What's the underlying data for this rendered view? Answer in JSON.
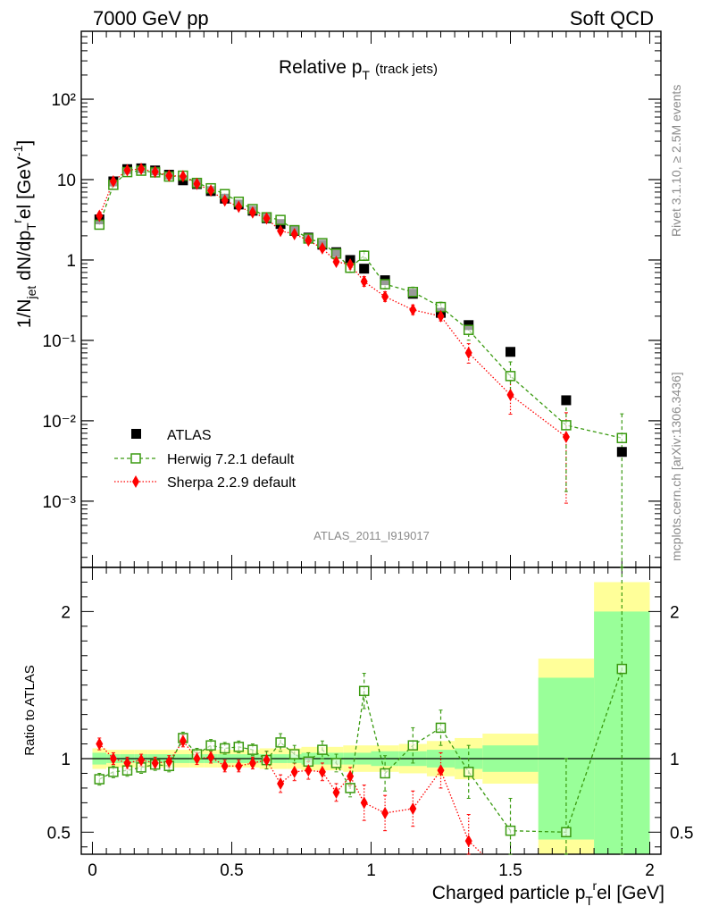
{
  "header": {
    "left": "7000 GeV pp",
    "right": "Soft QCD"
  },
  "side": {
    "rivet": "Rivet 3.1.10, ≥ 2.5M events",
    "mcplots": "mcplots.cern.ch [arXiv:1306.3436]"
  },
  "watermark": "ATLAS_2011_I919017",
  "colors": {
    "herwig": "#3a9a10",
    "sherpa": "#ff0000",
    "atlas": "#000000",
    "band_inner": "#99ff99",
    "band_outer": "#ffff99"
  },
  "chart_data": [
    {
      "type": "scatter",
      "panel": "main",
      "title_main": "Relative p",
      "title_sub": "T",
      "title_note": "(track jets)",
      "ylabel": "1/N_jet dN/dp_T^rel [GeV^-1]",
      "ylabel_parts": {
        "a": "1/N",
        "a_sub": "jet",
        "b": " dN/dp",
        "b_sub": "T",
        "b_sup": "r",
        "c": "el [GeV",
        "c_sup": "-1",
        "d": "]"
      },
      "yscale": "log",
      "ylim": [
        0.00015,
        700
      ],
      "xlim": [
        -0.04,
        2.04
      ],
      "ytick_labels": [
        "10⁻³",
        "10⁻²",
        "10⁻¹",
        "1",
        "10",
        "10²"
      ],
      "ytick_values": [
        0.001,
        0.01,
        0.1,
        1,
        10,
        100
      ],
      "legend": [
        "ATLAS",
        "Herwig 7.2.1 default",
        "Sherpa 2.2.9 default"
      ],
      "legend_position": "lower-left",
      "series": [
        {
          "name": "ATLAS",
          "x": [
            0.025,
            0.075,
            0.125,
            0.175,
            0.225,
            0.275,
            0.325,
            0.375,
            0.425,
            0.475,
            0.525,
            0.575,
            0.625,
            0.675,
            0.725,
            0.775,
            0.825,
            0.875,
            0.925,
            0.975,
            1.05,
            1.15,
            1.25,
            1.35,
            1.5,
            1.7,
            1.9
          ],
          "y": [
            3.2,
            9.5,
            13.5,
            13.8,
            13.0,
            11.5,
            9.8,
            8.8,
            7.2,
            5.8,
            4.9,
            4.1,
            3.3,
            2.8,
            2.3,
            1.9,
            1.55,
            1.25,
            1.0,
            0.78,
            0.56,
            0.38,
            0.22,
            0.155,
            0.072,
            0.018,
            0.0041
          ]
        },
        {
          "name": "Herwig 7.2.1 default",
          "x": [
            0.025,
            0.075,
            0.125,
            0.175,
            0.225,
            0.275,
            0.325,
            0.375,
            0.425,
            0.475,
            0.525,
            0.575,
            0.625,
            0.675,
            0.725,
            0.775,
            0.825,
            0.875,
            0.925,
            0.975,
            1.05,
            1.15,
            1.25,
            1.35,
            1.5,
            1.7,
            1.9
          ],
          "y": [
            2.75,
            8.6,
            12.4,
            12.9,
            12.3,
            10.9,
            11.2,
            9.1,
            7.8,
            6.6,
            5.3,
            4.3,
            3.4,
            3.15,
            2.35,
            1.85,
            1.62,
            1.2,
            0.8,
            1.13,
            0.5,
            0.4,
            0.26,
            0.135,
            0.036,
            0.0088,
            0.0061
          ]
        },
        {
          "name": "Sherpa 2.2.9 default",
          "x": [
            0.025,
            0.075,
            0.125,
            0.175,
            0.225,
            0.275,
            0.325,
            0.375,
            0.425,
            0.475,
            0.525,
            0.575,
            0.625,
            0.675,
            0.725,
            0.775,
            0.825,
            0.875,
            0.925,
            0.975,
            1.05,
            1.15,
            1.25,
            1.35,
            1.5,
            1.7,
            1.9
          ],
          "y": [
            3.55,
            9.5,
            13.1,
            13.6,
            12.5,
            11.2,
            11.0,
            8.85,
            7.3,
            5.5,
            4.6,
            3.9,
            3.3,
            2.3,
            2.1,
            1.75,
            1.4,
            0.95,
            0.88,
            0.54,
            0.35,
            0.24,
            0.2,
            0.07,
            0.021,
            0.0063,
            null
          ]
        }
      ]
    },
    {
      "type": "scatter",
      "panel": "ratio",
      "ylabel": "Ratio to ATLAS",
      "xlabel": "Charged particle p_T^rel [GeV]",
      "xlabel_parts": {
        "a": "Charged particle p",
        "sub": "T",
        "sup": "r",
        "b": "el [GeV]"
      },
      "ylim": [
        0.35,
        2.3
      ],
      "xlim": [
        -0.04,
        2.04
      ],
      "xtick_labels": [
        "0",
        "0.5",
        "1",
        "1.5",
        "2"
      ],
      "xtick_values": [
        0,
        0.5,
        1,
        1.5,
        2
      ],
      "ytick_labels": [
        "0.5",
        "1",
        "2"
      ],
      "ytick_values": [
        0.5,
        1,
        2
      ],
      "bands": {
        "edges": [
          0,
          0.05,
          0.1,
          0.15,
          0.2,
          0.25,
          0.3,
          0.35,
          0.4,
          0.45,
          0.5,
          0.55,
          0.6,
          0.65,
          0.7,
          0.75,
          0.8,
          0.85,
          0.9,
          0.95,
          1.0,
          1.1,
          1.2,
          1.3,
          1.4,
          1.6,
          1.8,
          2.0
        ],
        "inner": [
          0.04,
          0.03,
          0.03,
          0.03,
          0.03,
          0.03,
          0.03,
          0.03,
          0.03,
          0.03,
          0.03,
          0.03,
          0.03,
          0.03,
          0.03,
          0.04,
          0.04,
          0.04,
          0.04,
          0.04,
          0.05,
          0.05,
          0.06,
          0.07,
          0.09,
          0.55,
          1.0
        ],
        "outer": [
          0.07,
          0.06,
          0.06,
          0.06,
          0.06,
          0.06,
          0.06,
          0.06,
          0.06,
          0.06,
          0.06,
          0.06,
          0.07,
          0.07,
          0.07,
          0.08,
          0.08,
          0.08,
          0.09,
          0.09,
          0.09,
          0.1,
          0.12,
          0.14,
          0.17,
          0.68,
          1.2
        ]
      },
      "series": [
        {
          "name": "Herwig 7.2.1 default",
          "x": [
            0.025,
            0.075,
            0.125,
            0.175,
            0.225,
            0.275,
            0.325,
            0.375,
            0.425,
            0.475,
            0.525,
            0.575,
            0.625,
            0.675,
            0.725,
            0.775,
            0.825,
            0.875,
            0.925,
            0.975,
            1.05,
            1.15,
            1.25,
            1.35,
            1.5,
            1.7,
            1.9
          ],
          "y": [
            0.86,
            0.91,
            0.92,
            0.94,
            0.96,
            0.95,
            1.14,
            1.03,
            1.09,
            1.07,
            1.08,
            1.06,
            0.99,
            1.11,
            1.03,
            0.98,
            1.06,
            0.97,
            0.8,
            1.46,
            0.9,
            1.09,
            1.21,
            0.91,
            0.51,
            0.5,
            1.61
          ]
        },
        {
          "name": "Sherpa 2.2.9 default",
          "x": [
            0.025,
            0.075,
            0.125,
            0.175,
            0.225,
            0.275,
            0.325,
            0.375,
            0.425,
            0.475,
            0.525,
            0.575,
            0.625,
            0.675,
            0.725,
            0.775,
            0.825,
            0.875,
            0.925,
            0.975,
            1.05,
            1.15,
            1.25,
            1.35
          ],
          "y": [
            1.1,
            1.0,
            0.97,
            0.99,
            0.97,
            0.98,
            1.12,
            1.0,
            1.01,
            0.95,
            0.95,
            0.97,
            0.99,
            0.83,
            0.91,
            0.92,
            0.91,
            0.77,
            0.88,
            0.7,
            0.63,
            0.66,
            0.92,
            0.44
          ]
        }
      ]
    }
  ]
}
